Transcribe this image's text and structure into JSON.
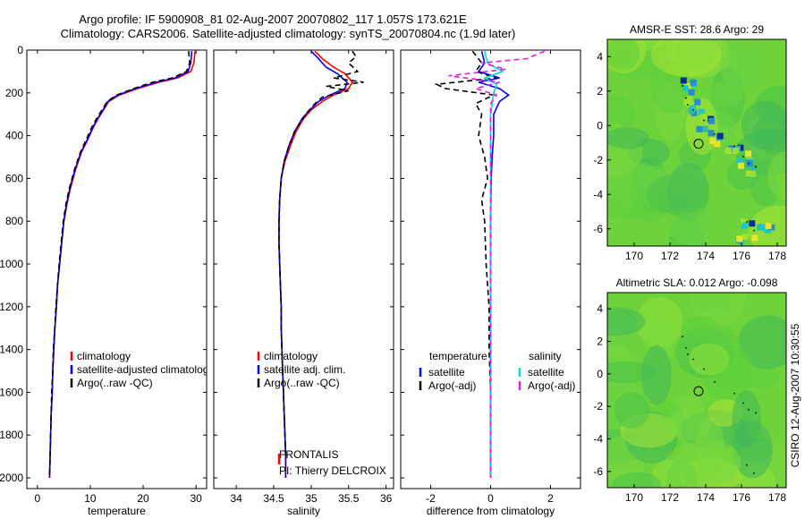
{
  "header": {
    "line1": "Argo profile: IF 5900908_81 02-Aug-2007 20070802_117 1.057S 173.621E",
    "line2": "Climatology: CARS2006. Satellite-adjusted climatology: synTS_20070804.nc (1.9d later)"
  },
  "side_stamp": "CSIRO 12-Aug-2007 10:30:55",
  "colors": {
    "red": "#ff0000",
    "blue": "#0000ff",
    "black": "#000000",
    "magenta": "#e020e0",
    "cyan": "#00e0e0",
    "map_green": "#6ed23a"
  },
  "chart_data": [
    {
      "type": "line",
      "xlabel": "temperature",
      "ylabel": "",
      "xlim": [
        -2,
        32
      ],
      "ylim": [
        2050,
        0
      ],
      "y_reversed": true,
      "xticks": [
        0,
        10,
        20,
        30
      ],
      "yticks": [
        0,
        200,
        400,
        600,
        800,
        1000,
        1200,
        1400,
        1600,
        1800,
        2000
      ],
      "legend": [
        "climatology",
        "satellite-adjusted climatology",
        "Argo(..raw -QC)"
      ],
      "series": [
        {
          "name": "climatology",
          "color": "#ff0000",
          "dash": "",
          "points": [
            [
              29.8,
              5
            ],
            [
              29.6,
              60
            ],
            [
              29.0,
              100
            ],
            [
              26.5,
              130
            ],
            [
              23,
              150
            ],
            [
              19,
              180
            ],
            [
              15.5,
              210
            ],
            [
              13.5,
              240
            ],
            [
              12.5,
              280
            ],
            [
              11.5,
              320
            ],
            [
              10.6,
              360
            ],
            [
              9.5,
              420
            ],
            [
              8.3,
              480
            ],
            [
              7.2,
              560
            ],
            [
              6.3,
              640
            ],
            [
              5.6,
              720
            ],
            [
              5.0,
              800
            ],
            [
              4.6,
              900
            ],
            [
              4.2,
              1000
            ],
            [
              3.8,
              1100
            ],
            [
              3.6,
              1200
            ],
            [
              3.3,
              1300
            ],
            [
              3.1,
              1400
            ],
            [
              2.9,
              1500
            ],
            [
              2.8,
              1600
            ],
            [
              2.6,
              1700
            ],
            [
              2.5,
              1800
            ],
            [
              2.4,
              1900
            ],
            [
              2.3,
              2000
            ]
          ]
        },
        {
          "name": "satellite-adjusted climatology",
          "color": "#0000ff",
          "dash": "",
          "points": [
            [
              29.2,
              5
            ],
            [
              29.0,
              60
            ],
            [
              28.5,
              100
            ],
            [
              26.0,
              130
            ],
            [
              22.5,
              150
            ],
            [
              18.5,
              180
            ],
            [
              15.2,
              210
            ],
            [
              13.3,
              240
            ],
            [
              12.4,
              280
            ],
            [
              11.4,
              320
            ],
            [
              10.5,
              360
            ],
            [
              9.4,
              420
            ],
            [
              8.2,
              480
            ],
            [
              7.1,
              560
            ],
            [
              6.2,
              640
            ],
            [
              5.5,
              720
            ],
            [
              5.0,
              800
            ],
            [
              4.6,
              900
            ],
            [
              4.2,
              1000
            ],
            [
              3.8,
              1100
            ],
            [
              3.6,
              1200
            ],
            [
              3.3,
              1300
            ],
            [
              3.1,
              1400
            ],
            [
              2.9,
              1500
            ],
            [
              2.8,
              1600
            ],
            [
              2.6,
              1700
            ],
            [
              2.5,
              1800
            ],
            [
              2.4,
              1900
            ],
            [
              2.3,
              2000
            ]
          ]
        },
        {
          "name": "Argo(..raw -QC)",
          "color": "#000000",
          "dash": "6,4",
          "points": [
            [
              28.6,
              5
            ],
            [
              28.8,
              60
            ],
            [
              28.2,
              100
            ],
            [
              25.5,
              130
            ],
            [
              21.8,
              150
            ],
            [
              18.2,
              180
            ],
            [
              15.0,
              210
            ],
            [
              13.2,
              240
            ],
            [
              12.2,
              280
            ],
            [
              11.2,
              320
            ],
            [
              10.3,
              360
            ],
            [
              9.2,
              420
            ],
            [
              8.1,
              480
            ],
            [
              7.0,
              560
            ],
            [
              6.1,
              640
            ],
            [
              5.4,
              720
            ],
            [
              4.9,
              800
            ],
            [
              4.5,
              900
            ],
            [
              4.1,
              1000
            ],
            [
              3.8,
              1100
            ],
            [
              3.5,
              1200
            ],
            [
              3.3,
              1300
            ],
            [
              3.0,
              1400
            ],
            [
              2.9,
              1500
            ],
            [
              2.7,
              1600
            ],
            [
              2.6,
              1700
            ],
            [
              2.5,
              1800
            ],
            [
              2.4,
              1900
            ],
            [
              2.3,
              2000
            ]
          ]
        }
      ]
    },
    {
      "type": "line",
      "xlabel": "salinity",
      "ylabel": "",
      "xlim": [
        33.7,
        36.1
      ],
      "ylim": [
        2050,
        0
      ],
      "y_reversed": true,
      "xticks": [
        34,
        34.5,
        35,
        35.5,
        36
      ],
      "legend": [
        "climatology",
        "satellite adj. clim.",
        "Argo(..raw -QC)"
      ],
      "notes": [
        "FRONTALIS",
        "PI: Thierry DELCROIX"
      ],
      "series": [
        {
          "name": "climatology",
          "color": "#ff0000",
          "dash": "",
          "points": [
            [
              35.05,
              5
            ],
            [
              35.15,
              40
            ],
            [
              35.3,
              80
            ],
            [
              35.45,
              110
            ],
            [
              35.55,
              150
            ],
            [
              35.5,
              180
            ],
            [
              35.3,
              210
            ],
            [
              35.15,
              240
            ],
            [
              35.0,
              280
            ],
            [
              34.9,
              320
            ],
            [
              34.8,
              380
            ],
            [
              34.72,
              450
            ],
            [
              34.65,
              520
            ],
            [
              34.6,
              600
            ],
            [
              34.58,
              700
            ],
            [
              34.57,
              800
            ],
            [
              34.57,
              900
            ],
            [
              34.58,
              1000
            ],
            [
              34.59,
              1100
            ],
            [
              34.6,
              1200
            ],
            [
              34.6,
              1300
            ],
            [
              34.61,
              1400
            ],
            [
              34.62,
              1500
            ],
            [
              34.63,
              1600
            ],
            [
              34.64,
              1700
            ],
            [
              34.65,
              1800
            ],
            [
              34.66,
              1900
            ],
            [
              34.66,
              2000
            ]
          ]
        },
        {
          "name": "satellite adj. clim.",
          "color": "#0000ff",
          "dash": "",
          "points": [
            [
              35.0,
              5
            ],
            [
              35.1,
              40
            ],
            [
              35.2,
              80
            ],
            [
              35.35,
              110
            ],
            [
              35.48,
              150
            ],
            [
              35.45,
              180
            ],
            [
              35.25,
              210
            ],
            [
              35.1,
              240
            ],
            [
              34.98,
              280
            ],
            [
              34.88,
              320
            ],
            [
              34.78,
              380
            ],
            [
              34.7,
              450
            ],
            [
              34.64,
              520
            ],
            [
              34.6,
              600
            ],
            [
              34.58,
              700
            ],
            [
              34.57,
              800
            ],
            [
              34.57,
              900
            ],
            [
              34.58,
              1000
            ],
            [
              34.59,
              1100
            ],
            [
              34.6,
              1200
            ],
            [
              34.6,
              1300
            ],
            [
              34.61,
              1400
            ],
            [
              34.62,
              1500
            ],
            [
              34.63,
              1600
            ],
            [
              34.64,
              1700
            ],
            [
              34.65,
              1800
            ],
            [
              34.66,
              1900
            ],
            [
              34.66,
              2000
            ]
          ]
        },
        {
          "name": "Argo(..raw -QC)",
          "color": "#000000",
          "dash": "6,4",
          "points": [
            [
              35.55,
              5
            ],
            [
              35.6,
              30
            ],
            [
              35.5,
              60
            ],
            [
              35.62,
              100
            ],
            [
              35.3,
              130
            ],
            [
              35.7,
              150
            ],
            [
              35.2,
              170
            ],
            [
              35.5,
              190
            ],
            [
              35.15,
              220
            ],
            [
              35.05,
              250
            ],
            [
              34.95,
              290
            ],
            [
              34.87,
              330
            ],
            [
              34.78,
              380
            ],
            [
              34.7,
              450
            ],
            [
              34.64,
              520
            ],
            [
              34.6,
              600
            ],
            [
              34.58,
              700
            ],
            [
              34.57,
              800
            ],
            [
              34.57,
              900
            ],
            [
              34.58,
              1000
            ],
            [
              34.59,
              1100
            ],
            [
              34.6,
              1200
            ],
            [
              34.6,
              1300
            ],
            [
              34.61,
              1400
            ],
            [
              34.62,
              1500
            ],
            [
              34.63,
              1600
            ],
            [
              34.64,
              1700
            ],
            [
              34.65,
              1800
            ],
            [
              34.66,
              1900
            ]
          ]
        }
      ]
    },
    {
      "type": "line",
      "xlabel": "difference from climatology",
      "ylabel": "",
      "xlim": [
        -3,
        3
      ],
      "ylim": [
        2050,
        0
      ],
      "y_reversed": true,
      "xticks": [
        -2,
        0,
        2
      ],
      "legend_groups": [
        {
          "title": "temperature",
          "items": [
            "satellite",
            "Argo(-adj)"
          ]
        },
        {
          "title": "salinity",
          "items": [
            "satellite",
            "Argo(-adj)"
          ]
        }
      ],
      "series": [
        {
          "name": "temperature satellite",
          "color": "#0000ff",
          "dash": "",
          "points": [
            [
              -0.3,
              5
            ],
            [
              -0.2,
              60
            ],
            [
              -0.4,
              100
            ],
            [
              0.3,
              130
            ],
            [
              -0.4,
              150
            ],
            [
              0.3,
              180
            ],
            [
              0.6,
              210
            ],
            [
              0.3,
              240
            ],
            [
              0.1,
              300
            ],
            [
              0.1,
              400
            ],
            [
              0.05,
              500
            ],
            [
              0.02,
              600
            ],
            [
              0,
              800
            ],
            [
              0,
              1200
            ],
            [
              0,
              1600
            ],
            [
              0,
              2000
            ]
          ]
        },
        {
          "name": "temperature Argo(-adj)",
          "color": "#000000",
          "dash": "6,4",
          "points": [
            [
              -0.6,
              5
            ],
            [
              -0.3,
              60
            ],
            [
              -0.5,
              100
            ],
            [
              0.2,
              130
            ],
            [
              -1.8,
              160
            ],
            [
              -1.5,
              180
            ],
            [
              0.1,
              210
            ],
            [
              -0.5,
              250
            ],
            [
              -0.3,
              300
            ],
            [
              -0.4,
              400
            ],
            [
              -0.2,
              500
            ],
            [
              -0.1,
              600
            ],
            [
              -0.3,
              700
            ],
            [
              -0.2,
              800
            ],
            [
              -0.15,
              1000
            ],
            [
              -0.05,
              1200
            ],
            [
              -0.05,
              1400
            ],
            [
              0,
              1600
            ],
            [
              0,
              2000
            ]
          ]
        },
        {
          "name": "salinity satellite",
          "color": "#00e0e0",
          "dash": "",
          "points": [
            [
              -0.2,
              5
            ],
            [
              -0.1,
              60
            ],
            [
              0.4,
              100
            ],
            [
              -0.2,
              130
            ],
            [
              0.2,
              160
            ],
            [
              0.1,
              200
            ],
            [
              0,
              300
            ],
            [
              0,
              500
            ],
            [
              0,
              1000
            ],
            [
              0,
              1500
            ],
            [
              0,
              2000
            ]
          ]
        },
        {
          "name": "salinity Argo(-adj)",
          "color": "#e020e0",
          "dash": "6,4",
          "points": [
            [
              1.8,
              5
            ],
            [
              1.2,
              40
            ],
            [
              -0.3,
              60
            ],
            [
              0.5,
              90
            ],
            [
              -1.4,
              120
            ],
            [
              0.3,
              150
            ],
            [
              -0.5,
              180
            ],
            [
              0.2,
              210
            ],
            [
              0,
              250
            ],
            [
              0,
              400
            ],
            [
              0,
              1000
            ],
            [
              0,
              2000
            ]
          ]
        }
      ]
    },
    {
      "type": "heatmap",
      "title": "AMSR-E SST: 28.6 Argo: 29",
      "xlim": [
        168.5,
        178.5
      ],
      "ylim": [
        -7,
        5
      ],
      "xticks": [
        170,
        172,
        174,
        176,
        178
      ],
      "yticks": [
        -6,
        -4,
        -2,
        0,
        2,
        4
      ],
      "profile_location": [
        173.6,
        -1.06
      ]
    },
    {
      "type": "heatmap",
      "title": "Altimetric SLA: 0.012 Argo: -0.098",
      "xlim": [
        168.5,
        178.5
      ],
      "ylim": [
        -7,
        5
      ],
      "xticks": [
        170,
        172,
        174,
        176,
        178
      ],
      "yticks": [
        -6,
        -4,
        -2,
        0,
        2,
        4
      ],
      "profile_location": [
        173.6,
        -1.06
      ]
    }
  ]
}
